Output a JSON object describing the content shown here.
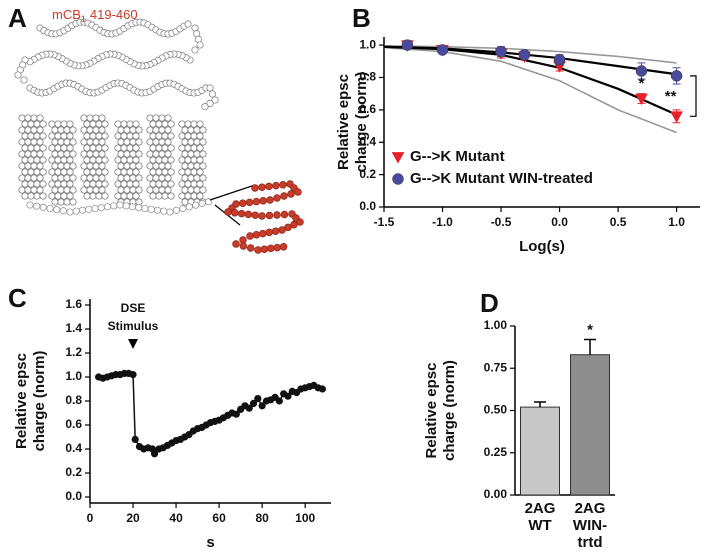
{
  "diagram": {
    "panel": "A",
    "label": "mCB",
    "subscript": "1",
    "range": "419-460"
  },
  "chart_data": [
    {
      "panel": "B",
      "type": "line",
      "ylabel": [
        "Relative epsc",
        "charge (norm)"
      ],
      "xlabel": "Log(s)",
      "xlim": [
        -1.5,
        1.2
      ],
      "ylim": [
        0,
        1.05
      ],
      "xticks": [
        {
          "value": -1.5,
          "label": "-1.5"
        },
        {
          "value": -1,
          "label": "-1.0"
        },
        {
          "value": -0.5,
          "label": "-0.5"
        },
        {
          "value": 0,
          "label": "0.0"
        },
        0.5,
        {
          "value": 1,
          "label": "1.0"
        }
      ],
      "yticks": [
        {
          "value": 0,
          "label": "0.0"
        },
        0.2,
        0.4,
        0.6,
        0.8,
        {
          "value": 1,
          "label": "1.0"
        }
      ],
      "x": [
        -1.3,
        -1,
        -0.5,
        -0.3,
        0,
        0.7,
        1
      ],
      "series": [
        {
          "name": "G-->K Mutant",
          "color": "#e8202a",
          "marker": "triangle",
          "values": [
            1.0,
            0.97,
            0.95,
            0.93,
            0.87,
            0.67,
            0.56
          ],
          "errors": [
            0.02,
            0.02,
            0.03,
            0.02,
            0.03,
            0.03,
            0.04
          ]
        },
        {
          "name": "G-->K Mutant WIN-treated",
          "color": "#4a4a9c",
          "marker": "circle",
          "values": [
            1.0,
            0.97,
            0.96,
            0.94,
            0.91,
            0.84,
            0.81
          ],
          "errors": [
            0.02,
            0.02,
            0.03,
            0.02,
            0.03,
            0.05,
            0.05
          ]
        }
      ],
      "curves": [
        {
          "color": "#999999",
          "x": [
            -1.5,
            -1,
            -0.5,
            0,
            0.5,
            1
          ],
          "values": [
            0.995,
            0.99,
            0.98,
            0.96,
            0.93,
            0.89
          ]
        },
        {
          "color": "#999999",
          "x": [
            -1.5,
            -1,
            -0.5,
            0,
            0.5,
            1
          ],
          "values": [
            0.985,
            0.96,
            0.9,
            0.78,
            0.6,
            0.46
          ]
        },
        {
          "color": "#000000",
          "x": [
            -1.5,
            -1,
            -0.5,
            0,
            0.5,
            1
          ],
          "values": [
            0.99,
            0.98,
            0.955,
            0.92,
            0.87,
            0.82
          ]
        },
        {
          "color": "#000000",
          "x": [
            -1.5,
            -1,
            -0.5,
            0,
            0.5,
            1
          ],
          "values": [
            0.99,
            0.975,
            0.94,
            0.86,
            0.73,
            0.57
          ]
        }
      ],
      "annotations": [
        "*",
        "**"
      ],
      "legend": "lower left"
    },
    {
      "panel": "C",
      "type": "scatter",
      "ylabel": [
        "Relative epsc",
        "charge (norm)"
      ],
      "xlabel": "s",
      "xlim": [
        0,
        112
      ],
      "ylim": [
        -0.05,
        1.65
      ],
      "xticks": [
        0,
        20,
        40,
        60,
        80,
        100
      ],
      "yticks": [
        {
          "value": 0,
          "label": "0.0"
        },
        0.2,
        0.4,
        0.6,
        0.8,
        {
          "value": 1,
          "label": "1.0"
        },
        1.2,
        1.4,
        1.6
      ],
      "x": [
        4,
        6,
        8,
        10,
        12,
        14,
        16,
        18,
        20,
        21,
        23,
        25,
        27,
        29,
        30,
        32,
        34,
        36,
        38,
        40,
        42,
        44,
        46,
        48,
        50,
        52,
        54,
        56,
        58,
        60,
        62,
        64,
        66,
        68,
        70,
        72,
        74,
        76,
        78,
        80,
        82,
        84,
        86,
        88,
        90,
        92,
        94,
        96,
        98,
        100,
        102,
        104,
        106,
        108
      ],
      "color": "#111111",
      "values": [
        1.0,
        0.99,
        1.0,
        1.01,
        1.02,
        1.02,
        1.03,
        1.03,
        1.02,
        0.48,
        0.42,
        0.4,
        0.41,
        0.4,
        0.36,
        0.4,
        0.41,
        0.43,
        0.45,
        0.47,
        0.48,
        0.5,
        0.52,
        0.55,
        0.57,
        0.58,
        0.6,
        0.62,
        0.63,
        0.64,
        0.66,
        0.68,
        0.7,
        0.69,
        0.73,
        0.76,
        0.74,
        0.78,
        0.82,
        0.76,
        0.8,
        0.81,
        0.83,
        0.8,
        0.86,
        0.84,
        0.88,
        0.87,
        0.9,
        0.91,
        0.92,
        0.93,
        0.91,
        0.9
      ],
      "annotation": [
        "DSE",
        "Stimulus"
      ]
    },
    {
      "panel": "D",
      "type": "bar",
      "ylabel": [
        "Relative epsc",
        "charge (norm)"
      ],
      "ylim": [
        0,
        1.0
      ],
      "yticks": [
        {
          "value": 0,
          "label": "0.00"
        },
        0.25,
        {
          "value": 0.5,
          "label": "0.50"
        },
        0.75,
        {
          "value": 1,
          "label": "1.00"
        }
      ],
      "categories": [
        [
          "2AG",
          "WT"
        ],
        [
          "2AG",
          "WIN-",
          "trtd"
        ]
      ],
      "values": [
        0.52,
        0.83
      ],
      "errors": [
        0.03,
        0.09
      ],
      "colors": [
        "#c8c8c8",
        "#8e8e8e"
      ],
      "annotations": [
        null,
        "*"
      ]
    }
  ]
}
